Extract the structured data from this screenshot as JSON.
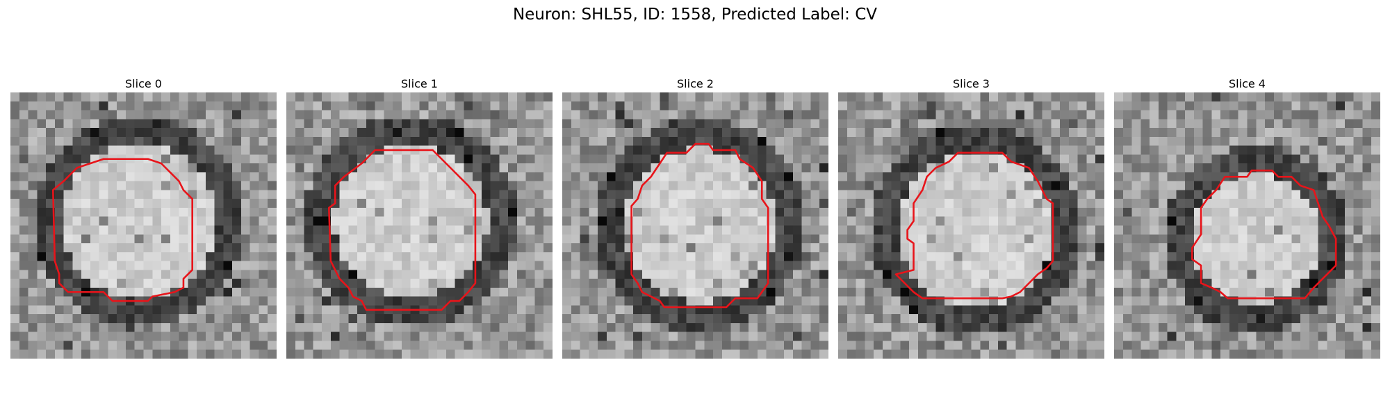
{
  "figure": {
    "title": "Neuron: SHL55, ID: 1558, Predicted Label: CV"
  },
  "panels": [
    {
      "title": "Slice 0",
      "seed": 11,
      "ring_center_row": 14.5,
      "ring_center_col": 14.5,
      "ring_radius": 10.5
    },
    {
      "title": "Slice 1",
      "seed": 23,
      "ring_center_row": 14.5,
      "ring_center_col": 14.0,
      "ring_radius": 10.5
    },
    {
      "title": "Slice 2",
      "seed": 37,
      "ring_center_row": 15.0,
      "ring_center_col": 15.5,
      "ring_radius": 10.5
    },
    {
      "title": "Slice 3",
      "seed": 41,
      "ring_center_row": 15.5,
      "ring_center_col": 15.5,
      "ring_radius": 10.5
    },
    {
      "title": "Slice 4",
      "seed": 53,
      "ring_center_row": 16.5,
      "ring_center_col": 16.0,
      "ring_radius": 9.0
    }
  ],
  "colors": {
    "contour": "#e8141a",
    "grayscale_dark": "#0a0a0a",
    "grayscale_light": "#f2f2f2"
  }
}
